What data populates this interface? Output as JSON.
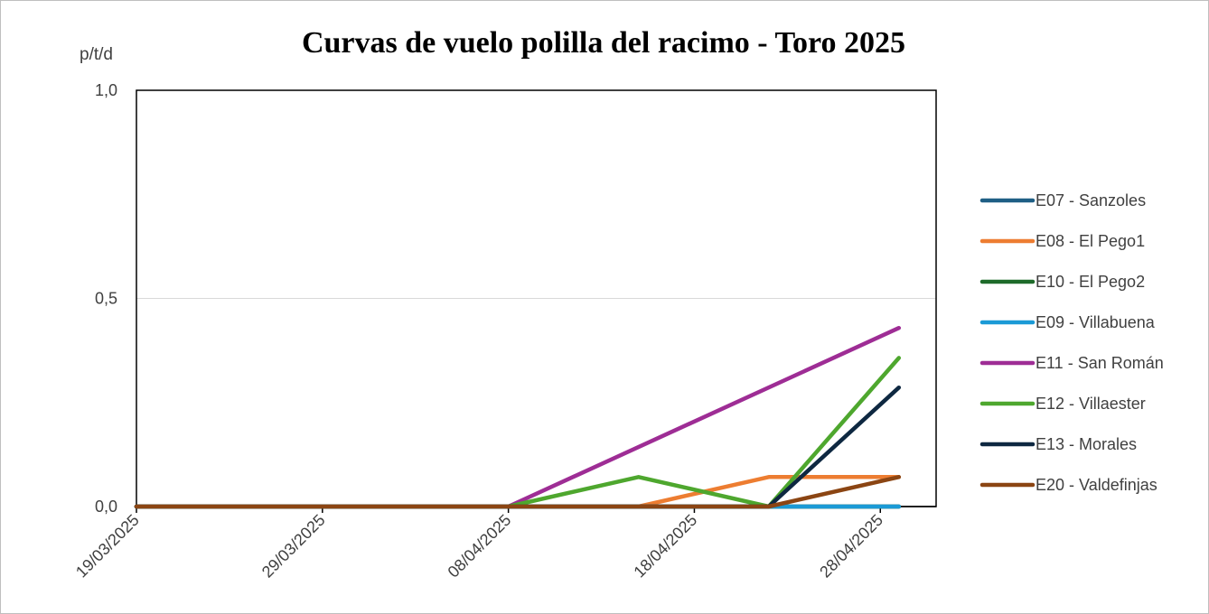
{
  "chart_data": {
    "type": "line",
    "title": "Curvas de vuelo polilla del racimo - Toro 2025",
    "ylabel": "p/t/d",
    "xlabel": "",
    "ylim": [
      0,
      1
    ],
    "yticks": [
      "0,0",
      "0,5",
      "1,0"
    ],
    "yticks_values": [
      0,
      0.5,
      1
    ],
    "xlim": [
      "2025-03-19",
      "2025-05-01"
    ],
    "xticks": [
      "19/03/2025",
      "29/03/2025",
      "08/04/2025",
      "18/04/2025",
      "28/04/2025"
    ],
    "xticks_dates": [
      "2025-03-19",
      "2025-03-29",
      "2025-04-08",
      "2025-04-18",
      "2025-04-28"
    ],
    "grid": "horizontal",
    "legend_position": "right",
    "x": [
      "2025-03-19",
      "2025-04-08",
      "2025-04-15",
      "2025-04-22",
      "2025-04-29"
    ],
    "series": [
      {
        "name": "E07 - Sanzoles",
        "color": "#1f5f85",
        "values": [
          0,
          0,
          0,
          0,
          0
        ]
      },
      {
        "name": "E08 - El Pego1",
        "color": "#ed7d31",
        "values": [
          0,
          0,
          0,
          0.071,
          0.071
        ]
      },
      {
        "name": "E10 - El Pego2",
        "color": "#1e6b2a",
        "values": [
          0,
          0,
          0,
          0,
          0
        ]
      },
      {
        "name": "E09 - Villabuena",
        "color": "#1b9ad6",
        "values": [
          0,
          0,
          0,
          0,
          0
        ]
      },
      {
        "name": "E11 - San Román",
        "color": "#9e2d95",
        "values": [
          0,
          0,
          null,
          null,
          0.429
        ]
      },
      {
        "name": "E12 - Villaester",
        "color": "#4ea72e",
        "values": [
          0,
          0,
          0.071,
          0,
          0.357
        ]
      },
      {
        "name": "E13 - Morales",
        "color": "#0e2841",
        "values": [
          0,
          0,
          0,
          0,
          0.286
        ]
      },
      {
        "name": "E20 - Valdefinjas",
        "color": "#8b4513",
        "values": [
          0,
          0,
          0,
          0,
          0.071
        ]
      }
    ]
  }
}
